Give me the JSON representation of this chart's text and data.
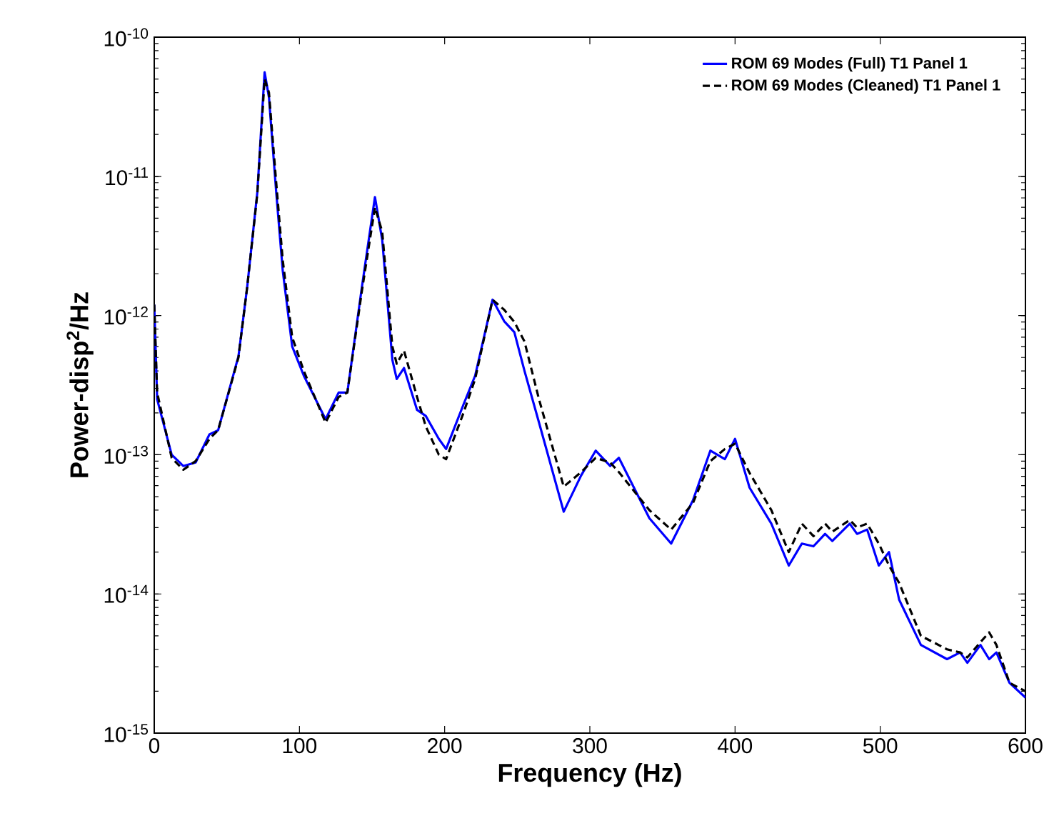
{
  "chart_data": {
    "type": "line",
    "xlabel": "Frequency (Hz)",
    "ylabel": "Power-disp$^{2}$/Hz",
    "log": "y",
    "legend": "top right",
    "x": [
      0,
      2,
      12,
      20,
      28.5,
      38,
      44,
      58,
      64,
      71,
      76,
      79,
      84,
      88.5,
      95,
      103,
      118,
      127,
      133,
      143,
      152,
      157,
      164,
      167,
      172,
      181,
      187,
      196,
      201,
      213,
      221,
      233,
      241,
      248,
      255,
      265,
      282,
      294,
      304,
      314,
      320,
      341,
      356,
      371,
      383,
      393,
      400,
      410,
      425,
      437,
      446,
      454,
      462,
      467,
      479,
      484,
      491,
      499,
      506,
      513,
      528,
      546,
      555,
      560,
      569,
      575,
      580,
      589,
      600
    ],
    "xlim": [
      0,
      600
    ],
    "xticks": [
      0,
      100,
      200,
      300,
      400,
      500,
      600
    ],
    "ylim": [
      1e-15,
      1e-10
    ],
    "yticks": [
      {
        "value": 1e-15,
        "label": "10$^{-15}$"
      },
      {
        "value": 1e-14,
        "label": "10$^{-14}$"
      },
      {
        "value": 1e-13,
        "label": "10$^{-13}$"
      },
      {
        "value": 1e-12,
        "label": "10$^{-12}$"
      },
      {
        "value": 1e-11,
        "label": "10$^{-11}$"
      },
      {
        "value": 1e-10,
        "label": "10$^{-10}$"
      }
    ],
    "series": [
      {
        "name": "ROM 69 Modes (Full) T1 Panel 1",
        "color": "#0000ff",
        "line_style": "solid",
        "values": [
          1.2e-12,
          2.5e-13,
          1e-13,
          8.3e-14,
          8.8e-14,
          1.4e-13,
          1.5e-13,
          5.1e-13,
          1.6e-12,
          7.7e-12,
          5.6e-11,
          3.7e-11,
          7.7e-12,
          2.1e-12,
          6e-13,
          3.7e-13,
          1.8e-13,
          2.8e-13,
          2.8e-13,
          1.6e-12,
          7.1e-12,
          3.5e-12,
          4.8e-13,
          3.5e-13,
          4.2e-13,
          2.1e-13,
          1.9e-13,
          1.3e-13,
          1.1e-13,
          2.3e-13,
          3.7e-13,
          1.3e-12,
          9.1e-13,
          7.6e-13,
          4e-13,
          1.7e-13,
          3.9e-14,
          7.1e-14,
          1.07e-13,
          8.3e-14,
          9.5e-14,
          3.5e-14,
          2.3e-14,
          4.7e-14,
          1.07e-13,
          9.3e-14,
          1.3e-13,
          5.8e-14,
          3.2e-14,
          1.6e-14,
          2.3e-14,
          2.2e-14,
          2.7e-14,
          2.4e-14,
          3.2e-14,
          2.7e-14,
          2.9e-14,
          1.6e-14,
          2e-14,
          9.1e-15,
          4.3e-15,
          3.4e-15,
          3.8e-15,
          3.2e-15,
          4.3e-15,
          3.4e-15,
          3.8e-15,
          2.3e-15,
          1.8e-15
        ]
      },
      {
        "name": "ROM 69 Modes (Cleaned) T1 Panel 1",
        "color": "#000000",
        "line_style": "dashed",
        "values": [
          1.2e-12,
          2.8e-13,
          9.5e-14,
          7.8e-14,
          9e-14,
          1.3e-13,
          1.5e-13,
          5e-13,
          1.6e-12,
          7.5e-12,
          5e-11,
          4e-11,
          9e-12,
          2.5e-12,
          7e-13,
          4e-13,
          1.7e-13,
          2.6e-13,
          2.8e-13,
          1.5e-12,
          6e-12,
          4e-12,
          6e-13,
          4.5e-13,
          5.6e-13,
          2.6e-13,
          1.6e-13,
          1e-13,
          9.3e-14,
          2e-13,
          3.5e-13,
          1.3e-12,
          1.1e-12,
          9e-13,
          6.5e-13,
          2.5e-13,
          5.9e-14,
          7.5e-14,
          9.5e-14,
          8.8e-14,
          7.5e-14,
          4e-14,
          2.9e-14,
          4.5e-14,
          9e-14,
          1.1e-13,
          1.2e-13,
          7.4e-14,
          4e-14,
          2e-14,
          3.2e-14,
          2.6e-14,
          3.2e-14,
          2.8e-14,
          3.4e-14,
          3e-14,
          3.2e-14,
          2.3e-14,
          1.6e-14,
          1.2e-14,
          5e-15,
          4e-15,
          3.8e-15,
          3.5e-15,
          4.5e-15,
          5.3e-15,
          4.3e-15,
          2.3e-15,
          2e-15
        ]
      }
    ]
  }
}
